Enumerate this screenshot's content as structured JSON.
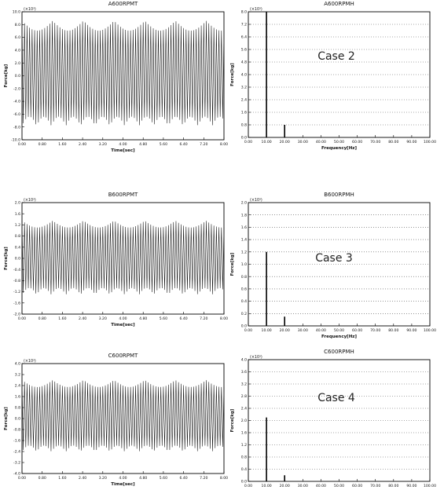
{
  "chart_data": [
    {
      "id": "p1",
      "type": "line",
      "title": "A600RPMT",
      "multiplier": "(×10³)",
      "xlabel": "Time[sec]",
      "ylabel": "Force[kg]",
      "xlim": [
        0,
        8
      ],
      "ylim": [
        -10,
        10
      ],
      "xticks": [
        "0.00",
        "0.80",
        "1.60",
        "2.40",
        "3.20",
        "4.00",
        "4.80",
        "5.60",
        "6.40",
        "7.20",
        "8.00"
      ],
      "yticks": [
        "-10.0",
        "-8.0",
        "-6.0",
        "-4.0",
        "-2.0",
        "0.0",
        "2.0",
        "4.0",
        "6.0",
        "8.0",
        "10.0"
      ],
      "amp_max": 8.6,
      "amp_min": -7.8,
      "cycles": 80
    },
    {
      "id": "p2",
      "type": "bar",
      "title": "A600RPMH",
      "multiplier": "(×10³)",
      "xlabel": "Frequency[Hz]",
      "ylabel": "Force[kg]",
      "xlim": [
        0,
        100
      ],
      "ylim": [
        0,
        8
      ],
      "annotation": "Case 2",
      "xticks": [
        "0.00",
        "10.00",
        "20.00",
        "30.00",
        "40.00",
        "50.00",
        "60.00",
        "70.00",
        "80.00",
        "90.00",
        "100.00"
      ],
      "yticks": [
        "0.0",
        "0.8",
        "1.6",
        "2.4",
        "3.2",
        "4.0",
        "4.8",
        "5.6",
        "6.4",
        "7.2",
        "8.0"
      ],
      "peaks": [
        {
          "x": 10,
          "y": 8.0
        },
        {
          "x": 20,
          "y": 0.8
        }
      ]
    },
    {
      "id": "p3",
      "type": "line",
      "title": "B600RPMT",
      "multiplier": "(×10³)",
      "xlabel": "Time[sec]",
      "ylabel": "Force[kg]",
      "xlim": [
        0,
        8
      ],
      "ylim": [
        -2,
        2
      ],
      "xticks": [
        "0.00",
        "0.80",
        "1.60",
        "2.40",
        "3.20",
        "4.00",
        "4.80",
        "5.60",
        "6.40",
        "7.20",
        "8.00"
      ],
      "yticks": [
        "-2.0",
        "-1.6",
        "-1.2",
        "-0.8",
        "-0.4",
        "0.0",
        "0.4",
        "0.8",
        "1.2",
        "1.6",
        "2.0"
      ],
      "amp_max": 1.35,
      "amp_min": -1.3,
      "cycles": 80
    },
    {
      "id": "p4",
      "type": "bar",
      "title": "B600RPMH",
      "multiplier": "(×10³)",
      "xlabel": "Frequency[Hz]",
      "ylabel": "Force[kg]",
      "xlim": [
        0,
        100
      ],
      "ylim": [
        0,
        2
      ],
      "annotation": "Case 3",
      "xticks": [
        "0.00",
        "10.00",
        "20.00",
        "30.00",
        "40.00",
        "50.00",
        "60.00",
        "70.00",
        "80.00",
        "90.00",
        "100.00"
      ],
      "yticks": [
        "0.0",
        "0.2",
        "0.4",
        "0.6",
        "0.8",
        "1.0",
        "1.2",
        "1.4",
        "1.6",
        "1.8",
        "2.0"
      ],
      "peaks": [
        {
          "x": 10,
          "y": 1.2
        },
        {
          "x": 20,
          "y": 0.15
        }
      ]
    },
    {
      "id": "p5",
      "type": "line",
      "title": "C600RPMT",
      "multiplier": "(×10³)",
      "xlabel": "Time[sec]",
      "ylabel": "Force[kg]",
      "xlim": [
        0,
        8
      ],
      "ylim": [
        -4,
        4
      ],
      "xticks": [
        "0.00",
        "0.80",
        "1.60",
        "2.40",
        "3.20",
        "4.00",
        "4.80",
        "5.60",
        "6.40",
        "7.20",
        "8.00"
      ],
      "yticks": [
        "-4.0",
        "-3.2",
        "-2.4",
        "-1.6",
        "-0.8",
        "0.0",
        "0.8",
        "1.6",
        "2.4",
        "3.2",
        "4.0"
      ],
      "amp_max": 2.8,
      "amp_min": -2.4,
      "cycles": 80
    },
    {
      "id": "p6",
      "type": "bar",
      "title": "C600RPMH",
      "multiplier": "(×10³)",
      "xlabel": "Frequency[Hz]",
      "ylabel": "Force[kg]",
      "xlim": [
        0,
        100
      ],
      "ylim": [
        0,
        4
      ],
      "annotation": "Case 4",
      "xticks": [
        "0.00",
        "10.00",
        "20.00",
        "30.00",
        "40.00",
        "50.00",
        "60.00",
        "70.00",
        "80.00",
        "90.00",
        "100.00"
      ],
      "yticks": [
        "0.0",
        "0.4",
        "0.8",
        "1.2",
        "1.6",
        "2.0",
        "2.4",
        "2.8",
        "3.2",
        "3.6",
        "4.0"
      ],
      "peaks": [
        {
          "x": 10,
          "y": 2.1
        },
        {
          "x": 20,
          "y": 0.2
        }
      ]
    }
  ]
}
